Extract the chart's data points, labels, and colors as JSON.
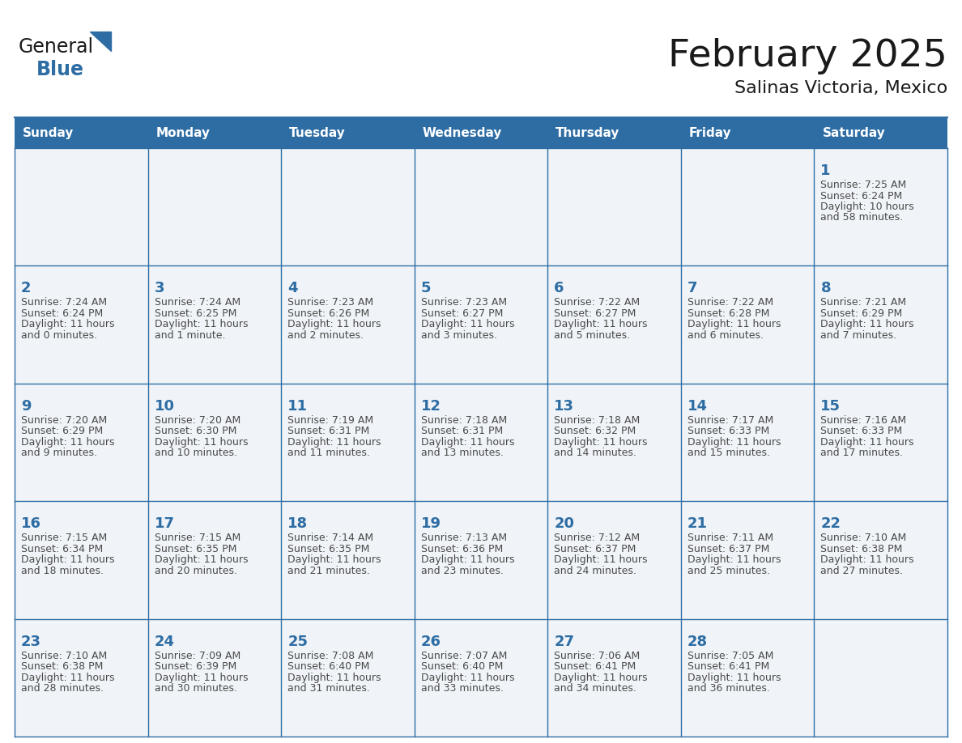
{
  "title": "February 2025",
  "subtitle": "Salinas Victoria, Mexico",
  "header_bg": "#2E6DA4",
  "header_text_color": "#FFFFFF",
  "cell_text_color": "#4a4a4a",
  "day_number_color": "#2E6DA4",
  "border_color": "#2E6DA4",
  "cell_bg_odd": "#f0f4f8",
  "cell_bg_even": "#ffffff",
  "background_color": "#FFFFFF",
  "days_of_week": [
    "Sunday",
    "Monday",
    "Tuesday",
    "Wednesday",
    "Thursday",
    "Friday",
    "Saturday"
  ],
  "weeks": [
    [
      {
        "day": "",
        "info": []
      },
      {
        "day": "",
        "info": []
      },
      {
        "day": "",
        "info": []
      },
      {
        "day": "",
        "info": []
      },
      {
        "day": "",
        "info": []
      },
      {
        "day": "",
        "info": []
      },
      {
        "day": "1",
        "info": [
          "Sunrise: 7:25 AM",
          "Sunset: 6:24 PM",
          "Daylight: 10 hours",
          "and 58 minutes."
        ]
      }
    ],
    [
      {
        "day": "2",
        "info": [
          "Sunrise: 7:24 AM",
          "Sunset: 6:24 PM",
          "Daylight: 11 hours",
          "and 0 minutes."
        ]
      },
      {
        "day": "3",
        "info": [
          "Sunrise: 7:24 AM",
          "Sunset: 6:25 PM",
          "Daylight: 11 hours",
          "and 1 minute."
        ]
      },
      {
        "day": "4",
        "info": [
          "Sunrise: 7:23 AM",
          "Sunset: 6:26 PM",
          "Daylight: 11 hours",
          "and 2 minutes."
        ]
      },
      {
        "day": "5",
        "info": [
          "Sunrise: 7:23 AM",
          "Sunset: 6:27 PM",
          "Daylight: 11 hours",
          "and 3 minutes."
        ]
      },
      {
        "day": "6",
        "info": [
          "Sunrise: 7:22 AM",
          "Sunset: 6:27 PM",
          "Daylight: 11 hours",
          "and 5 minutes."
        ]
      },
      {
        "day": "7",
        "info": [
          "Sunrise: 7:22 AM",
          "Sunset: 6:28 PM",
          "Daylight: 11 hours",
          "and 6 minutes."
        ]
      },
      {
        "day": "8",
        "info": [
          "Sunrise: 7:21 AM",
          "Sunset: 6:29 PM",
          "Daylight: 11 hours",
          "and 7 minutes."
        ]
      }
    ],
    [
      {
        "day": "9",
        "info": [
          "Sunrise: 7:20 AM",
          "Sunset: 6:29 PM",
          "Daylight: 11 hours",
          "and 9 minutes."
        ]
      },
      {
        "day": "10",
        "info": [
          "Sunrise: 7:20 AM",
          "Sunset: 6:30 PM",
          "Daylight: 11 hours",
          "and 10 minutes."
        ]
      },
      {
        "day": "11",
        "info": [
          "Sunrise: 7:19 AM",
          "Sunset: 6:31 PM",
          "Daylight: 11 hours",
          "and 11 minutes."
        ]
      },
      {
        "day": "12",
        "info": [
          "Sunrise: 7:18 AM",
          "Sunset: 6:31 PM",
          "Daylight: 11 hours",
          "and 13 minutes."
        ]
      },
      {
        "day": "13",
        "info": [
          "Sunrise: 7:18 AM",
          "Sunset: 6:32 PM",
          "Daylight: 11 hours",
          "and 14 minutes."
        ]
      },
      {
        "day": "14",
        "info": [
          "Sunrise: 7:17 AM",
          "Sunset: 6:33 PM",
          "Daylight: 11 hours",
          "and 15 minutes."
        ]
      },
      {
        "day": "15",
        "info": [
          "Sunrise: 7:16 AM",
          "Sunset: 6:33 PM",
          "Daylight: 11 hours",
          "and 17 minutes."
        ]
      }
    ],
    [
      {
        "day": "16",
        "info": [
          "Sunrise: 7:15 AM",
          "Sunset: 6:34 PM",
          "Daylight: 11 hours",
          "and 18 minutes."
        ]
      },
      {
        "day": "17",
        "info": [
          "Sunrise: 7:15 AM",
          "Sunset: 6:35 PM",
          "Daylight: 11 hours",
          "and 20 minutes."
        ]
      },
      {
        "day": "18",
        "info": [
          "Sunrise: 7:14 AM",
          "Sunset: 6:35 PM",
          "Daylight: 11 hours",
          "and 21 minutes."
        ]
      },
      {
        "day": "19",
        "info": [
          "Sunrise: 7:13 AM",
          "Sunset: 6:36 PM",
          "Daylight: 11 hours",
          "and 23 minutes."
        ]
      },
      {
        "day": "20",
        "info": [
          "Sunrise: 7:12 AM",
          "Sunset: 6:37 PM",
          "Daylight: 11 hours",
          "and 24 minutes."
        ]
      },
      {
        "day": "21",
        "info": [
          "Sunrise: 7:11 AM",
          "Sunset: 6:37 PM",
          "Daylight: 11 hours",
          "and 25 minutes."
        ]
      },
      {
        "day": "22",
        "info": [
          "Sunrise: 7:10 AM",
          "Sunset: 6:38 PM",
          "Daylight: 11 hours",
          "and 27 minutes."
        ]
      }
    ],
    [
      {
        "day": "23",
        "info": [
          "Sunrise: 7:10 AM",
          "Sunset: 6:38 PM",
          "Daylight: 11 hours",
          "and 28 minutes."
        ]
      },
      {
        "day": "24",
        "info": [
          "Sunrise: 7:09 AM",
          "Sunset: 6:39 PM",
          "Daylight: 11 hours",
          "and 30 minutes."
        ]
      },
      {
        "day": "25",
        "info": [
          "Sunrise: 7:08 AM",
          "Sunset: 6:40 PM",
          "Daylight: 11 hours",
          "and 31 minutes."
        ]
      },
      {
        "day": "26",
        "info": [
          "Sunrise: 7:07 AM",
          "Sunset: 6:40 PM",
          "Daylight: 11 hours",
          "and 33 minutes."
        ]
      },
      {
        "day": "27",
        "info": [
          "Sunrise: 7:06 AM",
          "Sunset: 6:41 PM",
          "Daylight: 11 hours",
          "and 34 minutes."
        ]
      },
      {
        "day": "28",
        "info": [
          "Sunrise: 7:05 AM",
          "Sunset: 6:41 PM",
          "Daylight: 11 hours",
          "and 36 minutes."
        ]
      },
      {
        "day": "",
        "info": []
      }
    ]
  ],
  "logo_text_general": "General",
  "logo_text_blue": "Blue",
  "logo_color_general": "#1a1a1a",
  "logo_color_blue": "#2E6DA4",
  "logo_triangle_color": "#2E6DA4",
  "header_fontsize": 11,
  "day_num_fontsize": 13,
  "info_fontsize": 9,
  "title_fontsize": 34,
  "subtitle_fontsize": 16
}
